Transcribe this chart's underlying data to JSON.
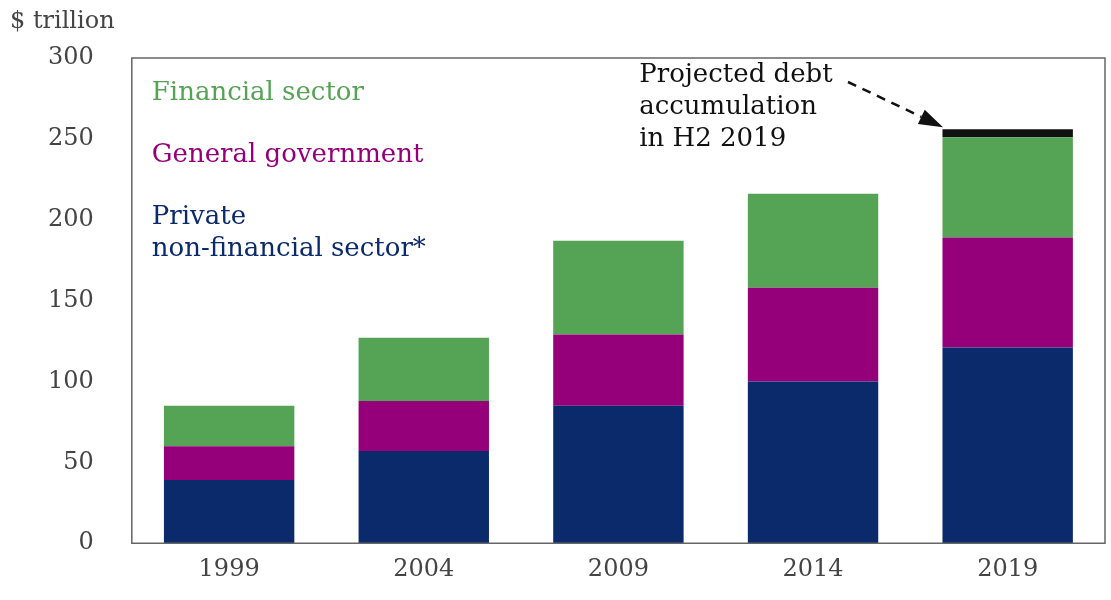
{
  "chart_data": {
    "type": "bar",
    "stacked": true,
    "ylabel": "$ trillion",
    "categories": [
      "1999",
      "2004",
      "2009",
      "2014",
      "2019"
    ],
    "series": [
      {
        "name": "Private\nnon-financial sector*",
        "color": "#0a2a6b",
        "values": [
          39,
          57,
          85,
          100,
          121
        ]
      },
      {
        "name": "General government",
        "color": "#95007a",
        "values": [
          21,
          31,
          44,
          58,
          68
        ]
      },
      {
        "name": "Financial sector",
        "color": "#55a355",
        "values": [
          25,
          39,
          58,
          58,
          62
        ]
      },
      {
        "color": "#111111",
        "values": [
          null,
          null,
          null,
          null,
          5
        ]
      }
    ],
    "ylim": [
      0,
      300
    ],
    "yticks": [
      0,
      50,
      100,
      150,
      200,
      250,
      300
    ],
    "grid": false,
    "legend": "top left",
    "annotations": [
      "Projected debt\naccumulation\nin H2 2019"
    ]
  }
}
